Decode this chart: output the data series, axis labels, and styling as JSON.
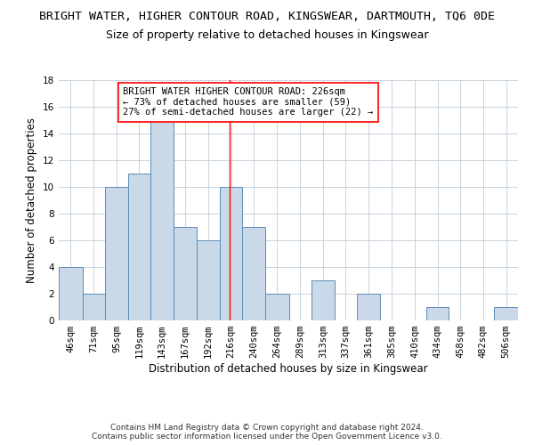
{
  "title": "BRIGHT WATER, HIGHER CONTOUR ROAD, KINGSWEAR, DARTMOUTH, TQ6 0DE",
  "subtitle": "Size of property relative to detached houses in Kingswear",
  "xlabel": "Distribution of detached houses by size in Kingswear",
  "ylabel": "Number of detached properties",
  "bar_edges": [
    46,
    71,
    95,
    119,
    143,
    167,
    192,
    216,
    240,
    264,
    289,
    313,
    337,
    361,
    385,
    410,
    434,
    458,
    482,
    506,
    531
  ],
  "bar_heights": [
    4,
    2,
    10,
    11,
    15,
    7,
    6,
    10,
    7,
    2,
    0,
    3,
    0,
    2,
    0,
    0,
    1,
    0,
    0,
    1
  ],
  "bar_color": "#c9d9e8",
  "bar_edge_color": "#5b8db8",
  "red_line_x": 226,
  "ylim": [
    0,
    18
  ],
  "yticks": [
    0,
    2,
    4,
    6,
    8,
    10,
    12,
    14,
    16,
    18
  ],
  "annotation_text": "BRIGHT WATER HIGHER CONTOUR ROAD: 226sqm\n← 73% of detached houses are smaller (59)\n27% of semi-detached houses are larger (22) →",
  "footer_text": "Contains HM Land Registry data © Crown copyright and database right 2024.\nContains public sector information licensed under the Open Government Licence v3.0.",
  "bg_color": "#ffffff",
  "grid_color": "#c8d4e0",
  "title_fontsize": 9.5,
  "subtitle_fontsize": 9,
  "axis_label_fontsize": 8.5,
  "tick_fontsize": 7.5,
  "annotation_fontsize": 7.5,
  "footer_fontsize": 6.5
}
